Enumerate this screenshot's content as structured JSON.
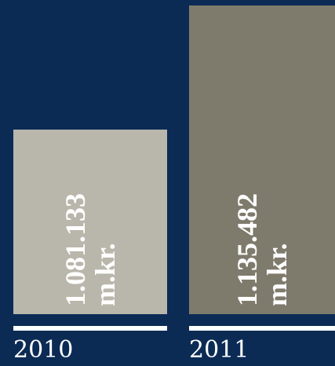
{
  "chart_data": {
    "type": "bar",
    "categories": [
      "2010",
      "2011"
    ],
    "values": [
      1081133,
      1135482
    ],
    "value_labels": [
      "1.081.133 m.kr.",
      "1.135.482 m.kr."
    ],
    "colors": [
      "#b9b6ab",
      "#7e7b6d"
    ],
    "ylim": [
      1000000,
      1137000
    ]
  }
}
